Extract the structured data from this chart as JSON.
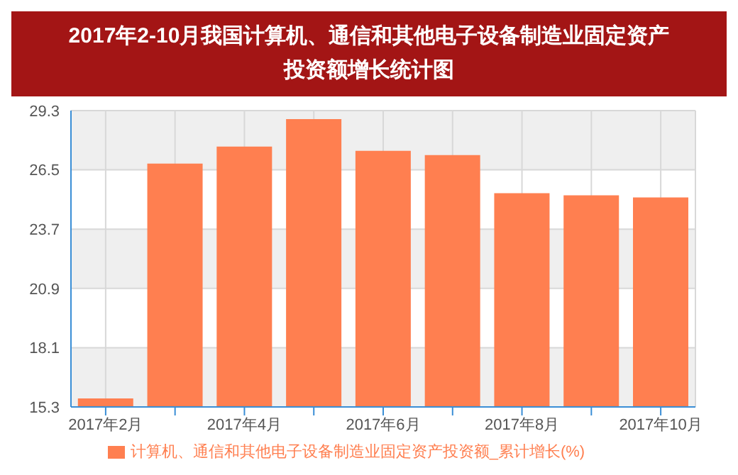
{
  "chart_data": {
    "type": "bar",
    "title": "2017年2-10月我国计算机、通信和其他电子设备制造业固定资产投资额增长统计图",
    "categories": [
      "2017年2月",
      null,
      "2017年4月",
      null,
      "2017年6月",
      null,
      "2017年8月",
      null,
      "2017年10月"
    ],
    "series": [
      {
        "name": "计算机、通信和其他电子设备制造业固定资产投资额_累计增长(%)",
        "color": "#ff7f50",
        "values": [
          15.7,
          26.8,
          27.6,
          28.9,
          27.4,
          27.2,
          25.4,
          25.3,
          25.2
        ]
      }
    ],
    "ylim": [
      15.3,
      29.3
    ],
    "yticks": [
      15.3,
      18.1,
      20.9,
      23.7,
      26.5,
      29.3
    ],
    "grid": true,
    "legend": "bottom"
  }
}
